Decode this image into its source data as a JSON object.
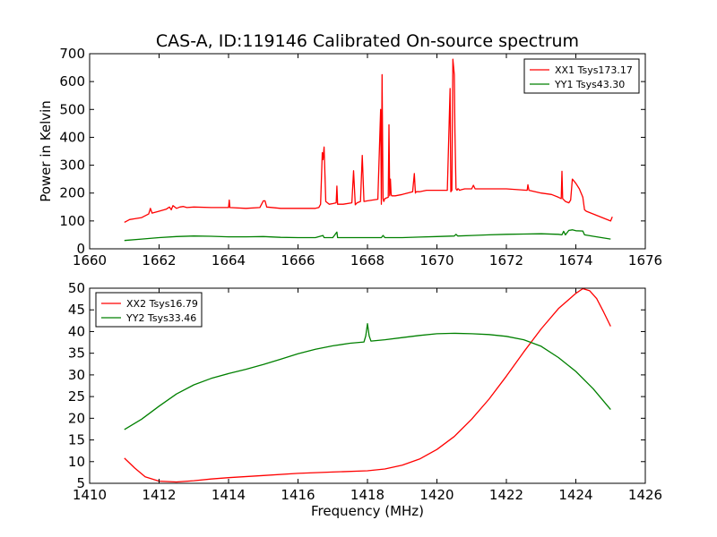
{
  "figure": {
    "title": "CAS-A, ID:119146 Calibrated On-source spectrum"
  },
  "chart_data": [
    {
      "type": "line",
      "title": "CAS-A, ID:119146 Calibrated On-source spectrum",
      "xlabel": "",
      "ylabel": "Power in Kelvin",
      "xlim": [
        1660,
        1676
      ],
      "ylim": [
        0,
        700
      ],
      "xticks": [
        "1660",
        "1662",
        "1664",
        "1666",
        "1668",
        "1670",
        "1672",
        "1674",
        "1676"
      ],
      "yticks": [
        "0",
        "100",
        "200",
        "300",
        "400",
        "500",
        "600",
        "700"
      ],
      "grid": false,
      "legend_position": "top-right",
      "series": [
        {
          "name": "XX1 Tsys173.17",
          "color": "#ff0000",
          "x": [
            1661.0,
            1661.15,
            1661.3,
            1661.5,
            1661.7,
            1661.75,
            1661.8,
            1662.0,
            1662.2,
            1662.3,
            1662.35,
            1662.4,
            1662.5,
            1662.6,
            1662.7,
            1662.8,
            1663.0,
            1663.5,
            1664.0,
            1664.02,
            1664.04,
            1664.5,
            1664.9,
            1665.0,
            1665.05,
            1665.1,
            1665.5,
            1666.0,
            1666.5,
            1666.6,
            1666.65,
            1666.7,
            1666.72,
            1666.75,
            1666.8,
            1666.9,
            1667.0,
            1667.1,
            1667.12,
            1667.14,
            1667.3,
            1667.55,
            1667.6,
            1667.65,
            1667.7,
            1667.8,
            1667.85,
            1667.9,
            1668.0,
            1668.3,
            1668.38,
            1668.4,
            1668.42,
            1668.45,
            1668.47,
            1668.5,
            1668.6,
            1668.62,
            1668.64,
            1668.66,
            1668.68,
            1668.7,
            1668.8,
            1669.0,
            1669.3,
            1669.35,
            1669.38,
            1669.4,
            1669.5,
            1669.7,
            1670.0,
            1670.3,
            1670.38,
            1670.4,
            1670.43,
            1670.46,
            1670.5,
            1670.52,
            1670.55,
            1670.58,
            1670.6,
            1670.62,
            1670.65,
            1670.7,
            1670.8,
            1671.0,
            1671.05,
            1671.1,
            1671.5,
            1672.0,
            1672.6,
            1672.62,
            1672.65,
            1673.0,
            1673.3,
            1673.5,
            1673.58,
            1673.6,
            1673.62,
            1673.7,
            1673.8,
            1673.85,
            1673.9,
            1674.0,
            1674.1,
            1674.2,
            1674.25,
            1674.3,
            1674.6,
            1675.0,
            1675.05
          ],
          "y": [
            95,
            105,
            108,
            112,
            125,
            145,
            128,
            135,
            142,
            150,
            140,
            155,
            145,
            150,
            152,
            148,
            150,
            148,
            148,
            175,
            148,
            145,
            148,
            172,
            172,
            150,
            145,
            145,
            145,
            148,
            160,
            345,
            320,
            365,
            170,
            160,
            162,
            165,
            225,
            160,
            160,
            165,
            280,
            158,
            165,
            170,
            335,
            170,
            172,
            178,
            500,
            160,
            625,
            180,
            170,
            180,
            185,
            445,
            190,
            250,
            195,
            190,
            190,
            195,
            205,
            270,
            200,
            205,
            205,
            210,
            210,
            210,
            575,
            205,
            210,
            680,
            625,
            420,
            215,
            210,
            215,
            215,
            210,
            212,
            215,
            215,
            228,
            215,
            215,
            215,
            210,
            230,
            210,
            200,
            195,
            185,
            180,
            278,
            180,
            170,
            165,
            175,
            250,
            235,
            215,
            185,
            140,
            135,
            120,
            100,
            115
          ]
        },
        {
          "name": "YY1 Tsys43.30",
          "color": "#008000",
          "x": [
            1661.0,
            1661.5,
            1662.0,
            1662.5,
            1663.0,
            1663.5,
            1664.0,
            1664.5,
            1665.0,
            1665.5,
            1666.0,
            1666.5,
            1666.72,
            1666.75,
            1666.8,
            1667.0,
            1667.12,
            1667.14,
            1667.5,
            1667.9,
            1668.0,
            1668.4,
            1668.45,
            1668.5,
            1669.0,
            1669.5,
            1670.0,
            1670.5,
            1670.55,
            1670.6,
            1671.0,
            1671.5,
            1672.0,
            1672.5,
            1673.0,
            1673.5,
            1673.6,
            1673.65,
            1673.7,
            1673.8,
            1673.9,
            1674.0,
            1674.2,
            1674.25,
            1674.5,
            1675.0
          ],
          "y": [
            30,
            35,
            40,
            44,
            46,
            45,
            43,
            43,
            44,
            41,
            40,
            40,
            48,
            40,
            40,
            40,
            60,
            40,
            40,
            40,
            40,
            40,
            48,
            40,
            40,
            42,
            44,
            46,
            52,
            46,
            48,
            50,
            52,
            53,
            54,
            52,
            50,
            63,
            50,
            66,
            68,
            65,
            64,
            50,
            45,
            35
          ]
        }
      ]
    },
    {
      "type": "line",
      "title": "",
      "xlabel": "Frequency (MHz)",
      "ylabel": "",
      "xlim": [
        1410,
        1426
      ],
      "ylim": [
        5,
        50
      ],
      "xticks": [
        "1410",
        "1412",
        "1414",
        "1416",
        "1418",
        "1420",
        "1422",
        "1424",
        "1426"
      ],
      "yticks": [
        "5",
        "10",
        "15",
        "20",
        "25",
        "30",
        "35",
        "40",
        "45",
        "50"
      ],
      "grid": false,
      "legend_position": "top-left",
      "series": [
        {
          "name": "XX2 Tsys16.79",
          "color": "#ff0000",
          "x": [
            1411.0,
            1411.3,
            1411.6,
            1412.0,
            1412.5,
            1413.0,
            1413.5,
            1414.0,
            1415.0,
            1416.0,
            1417.0,
            1418.0,
            1418.5,
            1419.0,
            1419.5,
            1420.0,
            1420.5,
            1421.0,
            1421.5,
            1422.0,
            1422.5,
            1423.0,
            1423.5,
            1424.0,
            1424.2,
            1424.4,
            1424.6,
            1424.8,
            1425.0
          ],
          "y": [
            10.8,
            8.5,
            6.5,
            5.5,
            5.3,
            5.6,
            6.0,
            6.3,
            6.8,
            7.3,
            7.6,
            7.9,
            8.3,
            9.2,
            10.6,
            12.8,
            15.8,
            19.8,
            24.4,
            29.7,
            35.3,
            40.6,
            45.3,
            48.8,
            49.9,
            49.4,
            47.6,
            44.5,
            41.2
          ]
        },
        {
          "name": "YY2 Tsys33.46",
          "color": "#008000",
          "x": [
            1411.0,
            1411.5,
            1412.0,
            1412.5,
            1413.0,
            1413.5,
            1414.0,
            1414.5,
            1415.0,
            1415.5,
            1416.0,
            1416.5,
            1417.0,
            1417.5,
            1417.9,
            1417.95,
            1418.0,
            1418.05,
            1418.1,
            1418.5,
            1419.0,
            1419.5,
            1420.0,
            1420.5,
            1421.0,
            1421.5,
            1422.0,
            1422.5,
            1423.0,
            1423.5,
            1424.0,
            1424.5,
            1425.0
          ],
          "y": [
            17.4,
            19.8,
            22.8,
            25.6,
            27.7,
            29.2,
            30.3,
            31.3,
            32.4,
            33.6,
            34.9,
            35.9,
            36.7,
            37.3,
            37.6,
            39.0,
            41.8,
            39.0,
            37.8,
            38.1,
            38.6,
            39.1,
            39.5,
            39.6,
            39.5,
            39.3,
            38.9,
            38.1,
            36.6,
            34.0,
            30.8,
            26.8,
            22.0
          ]
        }
      ]
    }
  ]
}
